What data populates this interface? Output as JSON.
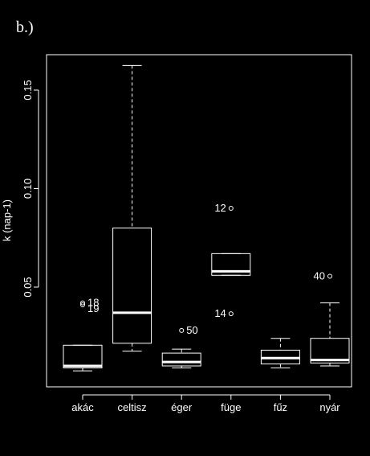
{
  "panel_label": "b.)",
  "chart_data": {
    "type": "boxplot",
    "ylabel": "k (nap-1)",
    "xlabel": "",
    "ylim": [
      0.0,
      0.165
    ],
    "yticks": [
      0.05,
      0.1,
      0.15
    ],
    "ytick_labels": [
      "0.05",
      "0.10",
      "0.15"
    ],
    "grid": false,
    "categories": [
      "akác",
      "celtisz",
      "éger",
      "füge",
      "fűz",
      "nyár"
    ],
    "boxes": [
      {
        "category": "akác",
        "whisker_low": 0.0075,
        "q1": 0.009,
        "median": 0.01,
        "q3": 0.0205,
        "whisker_high": 0.0205,
        "outliers": [
          {
            "value": 0.042,
            "label": "18"
          },
          {
            "value": 0.041,
            "label": "19"
          }
        ]
      },
      {
        "category": "celtisz",
        "whisker_low": 0.0175,
        "q1": 0.0215,
        "median": 0.037,
        "q3": 0.08,
        "whisker_high": 0.1625,
        "outliers": []
      },
      {
        "category": "éger",
        "whisker_low": 0.009,
        "q1": 0.01,
        "median": 0.012,
        "q3": 0.0165,
        "whisker_high": 0.0185,
        "outliers": [
          {
            "value": 0.028,
            "label": "50"
          }
        ]
      },
      {
        "category": "füge",
        "whisker_low": 0.056,
        "q1": 0.056,
        "median": 0.058,
        "q3": 0.067,
        "whisker_high": 0.067,
        "outliers": [
          {
            "value": 0.09,
            "label": "12"
          },
          {
            "value": 0.0365,
            "label": "14"
          }
        ]
      },
      {
        "category": "fűz",
        "whisker_low": 0.009,
        "q1": 0.011,
        "median": 0.014,
        "q3": 0.018,
        "whisker_high": 0.024,
        "outliers": []
      },
      {
        "category": "nyár",
        "whisker_low": 0.01,
        "q1": 0.0115,
        "median": 0.013,
        "q3": 0.024,
        "whisker_high": 0.042,
        "outliers": [
          {
            "value": 0.0555,
            "label": "40"
          }
        ]
      }
    ]
  }
}
